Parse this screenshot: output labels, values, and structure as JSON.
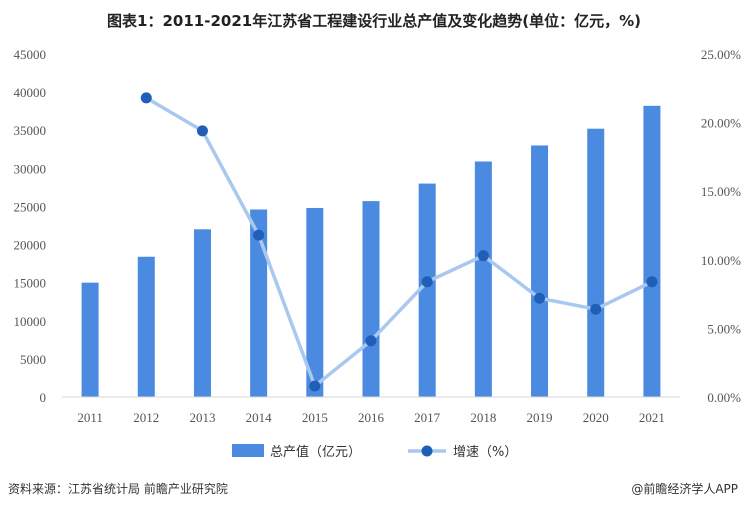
{
  "title": "图表1：2011-2021年江苏省工程建设行业总产值及变化趋势(单位：亿元，%)",
  "footer": {
    "source": "资料来源：江苏省统计局 前瞻产业研究院",
    "credit": "@前瞻经济学人APP"
  },
  "colors": {
    "bar": "#4a8ae0",
    "line": "#a9c8f0",
    "marker": "#1f5fb8",
    "axis": "#d9d9d9"
  },
  "chart_data": {
    "type": "bar",
    "title": "图表1：2011-2021年江苏省工程建设行业总产值及变化趋势(单位：亿元，%)",
    "categories": [
      "2011",
      "2012",
      "2013",
      "2014",
      "2015",
      "2016",
      "2017",
      "2018",
      "2019",
      "2020",
      "2021"
    ],
    "series": [
      {
        "name": "总产值（亿元）",
        "type": "bar",
        "axis": "left",
        "values": [
          15000,
          18400,
          22000,
          24600,
          24800,
          25700,
          28000,
          30900,
          33000,
          35200,
          38200
        ]
      },
      {
        "name": "增速（%）",
        "type": "line",
        "axis": "right",
        "values": [
          null,
          21.8,
          19.4,
          11.8,
          0.8,
          4.1,
          8.4,
          10.3,
          7.2,
          6.4,
          8.4
        ]
      }
    ],
    "y_left": {
      "range": [
        0,
        45000
      ],
      "ticks": [
        "0",
        "5000",
        "10000",
        "15000",
        "20000",
        "25000",
        "30000",
        "35000",
        "40000",
        "45000"
      ]
    },
    "y_right": {
      "range": [
        0,
        25
      ],
      "ticks": [
        "0.00%",
        "5.00%",
        "10.00%",
        "15.00%",
        "20.00%",
        "25.00%"
      ]
    },
    "legend": [
      {
        "label": "总产值（亿元）",
        "kind": "bar"
      },
      {
        "label": "增速（%）",
        "kind": "line"
      }
    ],
    "legend_position": "bottom"
  }
}
